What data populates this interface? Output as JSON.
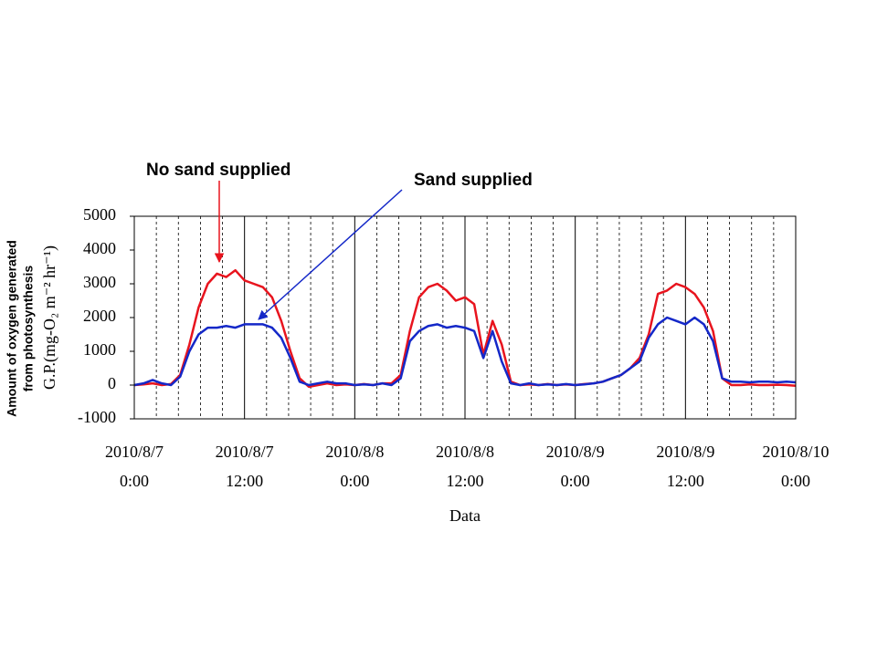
{
  "chart_data": {
    "type": "line",
    "xlabel": "Data",
    "ylabel": "G.P.(mg-O₂ m⁻² hr⁻¹)",
    "ylabel_description": [
      "Amount of oxygen generated",
      "from photosynthesis"
    ],
    "x": [
      0,
      1,
      2,
      3,
      4,
      5,
      6,
      7,
      8,
      9,
      10,
      11,
      12,
      13,
      14,
      15,
      16,
      17,
      18,
      19,
      20,
      21,
      22,
      23,
      24,
      25,
      26,
      27,
      28,
      29,
      30,
      31,
      32,
      33,
      34,
      35,
      36,
      37,
      38,
      39,
      40,
      41,
      42,
      43,
      44,
      45,
      46,
      47,
      48,
      49,
      50,
      51,
      52,
      53,
      54,
      55,
      56,
      57,
      58,
      59,
      60,
      61,
      62,
      63,
      64,
      65,
      66,
      67,
      68,
      69,
      70,
      71,
      72
    ],
    "series": [
      {
        "name": "No sand supplied",
        "color": "#e8141e",
        "values": [
          0,
          20,
          50,
          0,
          30,
          300,
          1200,
          2300,
          3000,
          3300,
          3200,
          3400,
          3100,
          3000,
          2900,
          2600,
          1900,
          1000,
          200,
          -50,
          0,
          50,
          0,
          20,
          0,
          30,
          0,
          50,
          50,
          300,
          1600,
          2600,
          2900,
          3000,
          2800,
          2500,
          2600,
          2400,
          900,
          1900,
          1200,
          100,
          0,
          20,
          0,
          30,
          0,
          20,
          0,
          30,
          50,
          100,
          200,
          300,
          500,
          800,
          1500,
          2700,
          2800,
          3000,
          2900,
          2700,
          2300,
          1600,
          200,
          0,
          0,
          20,
          0,
          0,
          10,
          0,
          -20
        ]
      },
      {
        "name": "Sand supplied",
        "color": "#1428c8",
        "values": [
          0,
          50,
          150,
          50,
          0,
          250,
          1000,
          1500,
          1700,
          1700,
          1750,
          1700,
          1800,
          1800,
          1800,
          1700,
          1400,
          800,
          100,
          0,
          50,
          100,
          50,
          50,
          0,
          20,
          0,
          50,
          0,
          200,
          1300,
          1600,
          1750,
          1800,
          1700,
          1750,
          1700,
          1600,
          800,
          1600,
          700,
          50,
          0,
          50,
          0,
          20,
          0,
          30,
          0,
          20,
          50,
          100,
          200,
          300,
          500,
          700,
          1400,
          1800,
          2000,
          1900,
          1800,
          2000,
          1800,
          1300,
          200,
          100,
          100,
          80,
          100,
          100,
          80,
          100,
          80
        ]
      }
    ],
    "xlim": [
      0,
      72
    ],
    "xticks": [
      {
        "value": 0,
        "label": [
          "2010/8/7",
          "0:00"
        ]
      },
      {
        "value": 12,
        "label": [
          "2010/8/7",
          "12:00"
        ]
      },
      {
        "value": 24,
        "label": [
          "2010/8/8",
          "0:00"
        ]
      },
      {
        "value": 36,
        "label": [
          "2010/8/8",
          "12:00"
        ]
      },
      {
        "value": 48,
        "label": [
          "2010/8/9",
          "0:00"
        ]
      },
      {
        "value": 60,
        "label": [
          "2010/8/9",
          "12:00"
        ]
      },
      {
        "value": 72,
        "label": [
          "2010/8/10",
          "0:00"
        ]
      }
    ],
    "xminor_ticks": [
      2.4,
      4.8,
      7.2,
      9.6,
      14.4,
      16.8,
      19.2,
      21.6,
      26.4,
      28.8,
      31.2,
      33.6,
      38.4,
      40.8,
      43.2,
      45.6,
      50.4,
      52.8,
      55.2,
      57.6,
      62.4,
      64.8,
      67.2,
      69.6
    ],
    "ylim": [
      -1000,
      5000
    ],
    "yticks": [
      5000,
      4000,
      3000,
      2000,
      1000,
      0,
      -1000
    ],
    "grid": true
  }
}
